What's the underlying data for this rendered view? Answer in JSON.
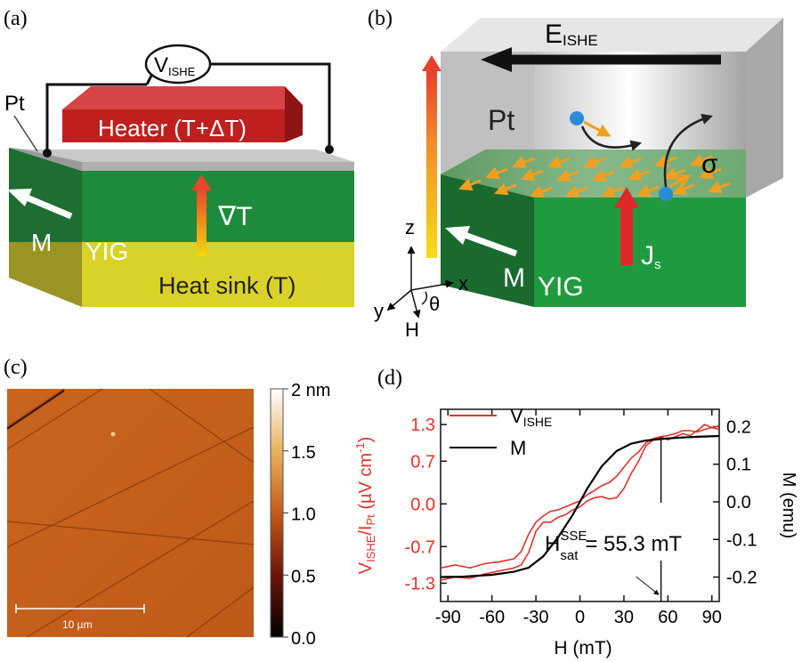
{
  "panels": {
    "a": {
      "label": "(a)",
      "voltmeter": {
        "main": "V",
        "sub": "ISHE"
      },
      "pt_label": "Pt",
      "heater_label": "Heater (T+ΔT)",
      "gradient_label": "∇T",
      "m_label": "M",
      "yig_label": "YIG",
      "sink_label": "Heat sink (T)"
    },
    "b": {
      "label": "(b)",
      "field": {
        "main": "E",
        "sub": "ISHE"
      },
      "pt_label": "Pt",
      "sigma_label": "σ",
      "js": {
        "main": "J",
        "sub": "s"
      },
      "m_label": "M",
      "yig_label": "YIG",
      "axes": {
        "z": "z",
        "x": "x",
        "y": "y",
        "h": "H",
        "theta": "θ"
      }
    },
    "c": {
      "label": "(c)",
      "scale_bar": "10 µm",
      "colorbar_ticks": [
        "2 nm",
        "1.5",
        "1.0",
        "0.5",
        "0.0"
      ]
    },
    "d": {
      "label": "(d)",
      "annotation": {
        "main": "H",
        "sup": "SSE",
        "sub": "sat",
        "value": "= 55.3 mT"
      }
    }
  },
  "chart_data": {
    "type": "line",
    "xlabel": "H (mT)",
    "ylabel_left": {
      "main": "V",
      "sub1": "ISHE",
      "mid": "/I",
      "sub2": "Pt",
      "units": " (µV cm",
      "sup": "-1",
      "close": ")"
    },
    "ylabel_right": "M (emu)",
    "xlim": [
      -95,
      95
    ],
    "ylim_left": [
      -1.6,
      1.55
    ],
    "ylim_right": [
      -0.265,
      0.246
    ],
    "x_ticks": [
      "-90",
      "-60",
      "-30",
      "0",
      "30",
      "60",
      "90"
    ],
    "y_left_ticks": [
      "1.3",
      "0.7",
      "0.0",
      "-0.7",
      "-1.3"
    ],
    "y_right_ticks": [
      "0.2",
      "0.1",
      "0.0",
      "-0.1",
      "-0.2"
    ],
    "legend": [
      {
        "name": "V",
        "sub": "ISHE",
        "color": "#e8302a"
      },
      {
        "name": "M",
        "sub": "",
        "color": "#000000"
      }
    ],
    "series": [
      {
        "name": "VISHE sweep 1",
        "color": "#e8302a",
        "x": [
          -95,
          -85,
          -75,
          -65,
          -55,
          -45,
          -40,
          -35,
          -30,
          -25,
          -20,
          -15,
          -10,
          -5,
          0,
          5,
          10,
          15,
          20,
          25,
          30,
          35,
          40,
          45,
          50,
          55,
          60,
          65,
          70,
          75,
          80,
          85,
          90,
          95
        ],
        "y": [
          -1.05,
          -1.0,
          -1.05,
          -0.98,
          -0.95,
          -0.9,
          -0.78,
          -0.5,
          -0.3,
          -0.2,
          -0.12,
          -0.1,
          -0.05,
          0.0,
          0.05,
          0.15,
          0.22,
          0.3,
          0.35,
          0.45,
          0.6,
          0.75,
          0.85,
          1.0,
          1.07,
          1.1,
          1.12,
          1.15,
          1.2,
          1.2,
          1.18,
          1.22,
          1.25,
          1.22
        ]
      },
      {
        "name": "VISHE sweep 2",
        "color": "#e8302a",
        "x": [
          -95,
          -85,
          -75,
          -65,
          -55,
          -45,
          -40,
          -35,
          -30,
          -25,
          -20,
          -15,
          -10,
          -5,
          0,
          5,
          10,
          15,
          20,
          25,
          30,
          35,
          40,
          45,
          50,
          55,
          60,
          65,
          70,
          75,
          80,
          85,
          90,
          95
        ],
        "y": [
          -1.25,
          -1.2,
          -1.22,
          -1.15,
          -1.1,
          -1.05,
          -1.0,
          -0.8,
          -0.45,
          -0.3,
          -0.3,
          -0.22,
          -0.18,
          -0.1,
          -0.05,
          0.05,
          0.1,
          0.12,
          0.08,
          0.1,
          0.25,
          0.5,
          0.7,
          0.95,
          1.05,
          1.1,
          1.05,
          1.1,
          1.15,
          1.12,
          1.2,
          1.3,
          1.25,
          1.28
        ]
      },
      {
        "name": "M",
        "color": "#000000",
        "axis": "right",
        "x": [
          -95,
          -80,
          -60,
          -45,
          -35,
          -25,
          -15,
          -5,
          0,
          5,
          15,
          25,
          35,
          45,
          55,
          65,
          80,
          95
        ],
        "y": [
          -0.2,
          -0.199,
          -0.194,
          -0.186,
          -0.175,
          -0.145,
          -0.095,
          -0.035,
          0.0,
          0.035,
          0.095,
          0.135,
          0.155,
          0.163,
          0.167,
          0.17,
          0.173,
          0.175
        ]
      }
    ],
    "marker_x": 55.3
  }
}
